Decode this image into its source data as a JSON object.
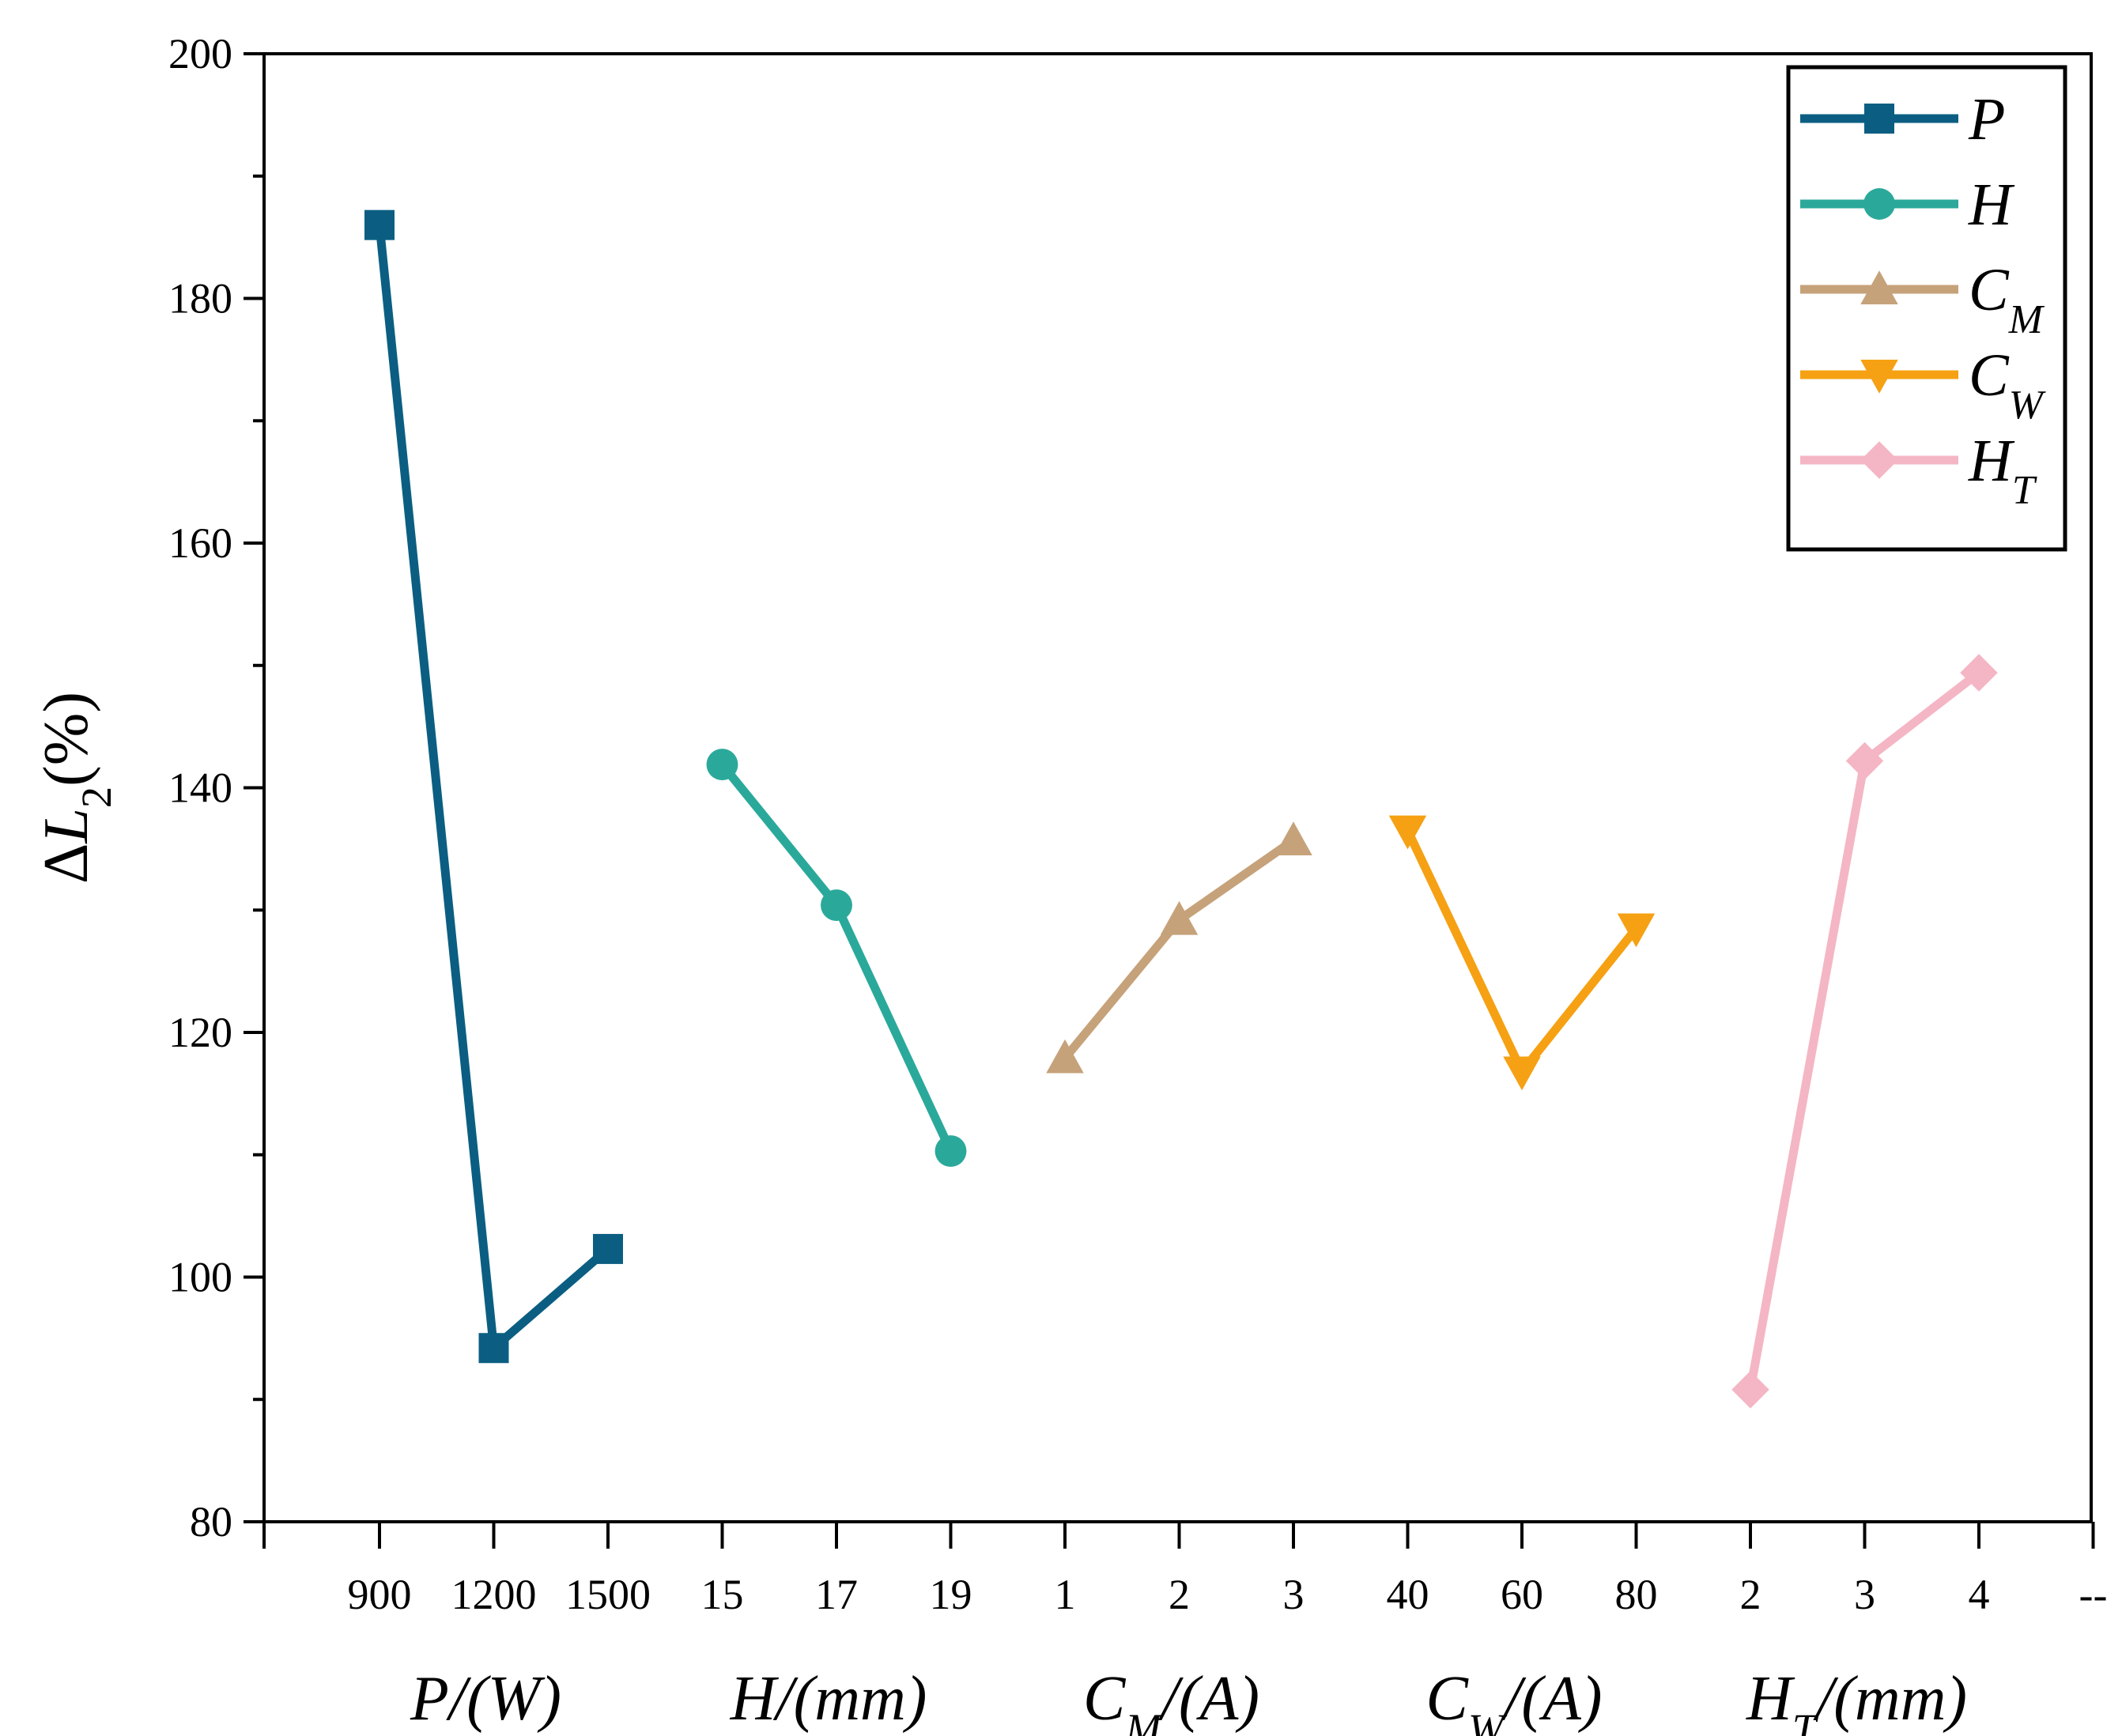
{
  "chart_data": {
    "type": "line",
    "ylabel": {
      "main": "ΔL",
      "sub": "2",
      "unit": "(%)"
    },
    "ylim": [
      80,
      200
    ],
    "yticks": [
      80,
      100,
      120,
      140,
      160,
      180,
      200
    ],
    "x_extra_tick_label": "--",
    "series": [
      {
        "name": "P",
        "sub": "",
        "marker": "square",
        "color": "#0b5e82",
        "tick_labels": [
          "900",
          "1200",
          "1500"
        ],
        "axis_title": {
          "main": "P",
          "sub": "",
          "unit": "/(W)"
        },
        "values": [
          186.0,
          94.2,
          102.3
        ]
      },
      {
        "name": "H",
        "sub": "",
        "marker": "circle",
        "color": "#2aa99b",
        "tick_labels": [
          "15",
          "17",
          "19"
        ],
        "axis_title": {
          "main": "H",
          "sub": "",
          "unit": "/(mm)"
        },
        "values": [
          141.9,
          130.4,
          110.3
        ]
      },
      {
        "name": "C",
        "sub": "M",
        "marker": "triangle-up",
        "color": "#c6a27a",
        "tick_labels": [
          "1",
          "2",
          "3"
        ],
        "axis_title": {
          "main": "C",
          "sub": "M",
          "unit": "/(A)"
        },
        "values": [
          117.9,
          129.2,
          135.7
        ]
      },
      {
        "name": "C",
        "sub": "W",
        "marker": "triangle-down",
        "color": "#f5a113",
        "tick_labels": [
          "40",
          "60",
          "80"
        ],
        "axis_title": {
          "main": "C",
          "sub": "W",
          "unit": "/(A)"
        },
        "values": [
          136.5,
          116.8,
          128.5
        ]
      },
      {
        "name": "H",
        "sub": "T",
        "marker": "diamond",
        "color": "#f4b6c4",
        "tick_labels": [
          "2",
          "3",
          "4"
        ],
        "axis_title": {
          "main": "H",
          "sub": "T",
          "unit": "/(mm)"
        },
        "values": [
          90.8,
          142.2,
          149.4
        ]
      }
    ],
    "legend": "top-right"
  }
}
